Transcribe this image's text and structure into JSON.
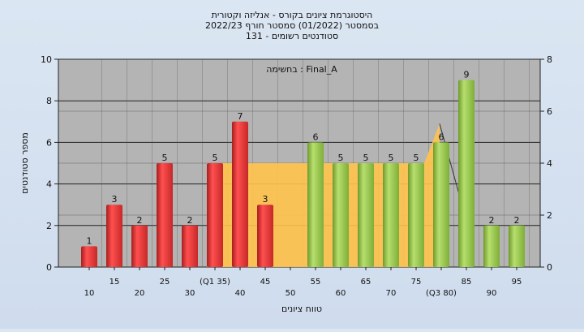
{
  "chart_data": {
    "type": "bar",
    "title_lines": [
      "היסטוגרמת ציונים בקורס - אנליזה וקטורית",
      "בסמסטר  (01/2022)  סמסטר חורף 2022/23",
      "סטודנטים רשומים - 131"
    ],
    "xlabel": "טווח ציונים",
    "ylabel": "מספר סטודנטים",
    "annotation": "בחשימה : Final_A",
    "ylim": [
      0,
      10
    ],
    "y2lim": [
      0,
      8
    ],
    "yticks": [
      "0",
      "2",
      "4",
      "6",
      "8",
      "10"
    ],
    "y2ticks": [
      "0",
      "2",
      "4",
      "6",
      "8"
    ],
    "categories": [
      "10",
      "15",
      "20",
      "25",
      "30",
      "(Q1 35)",
      "40",
      "45",
      "50",
      "55",
      "60",
      "65",
      "70",
      "75",
      "(Q3 80)",
      "85",
      "90",
      "95"
    ],
    "values": [
      1,
      3,
      2,
      5,
      2,
      5,
      7,
      3,
      0,
      6,
      5,
      5,
      5,
      5,
      6,
      9,
      2,
      2
    ],
    "bar_groups": [
      "red",
      "red",
      "red",
      "red",
      "red",
      "red",
      "red",
      "red",
      "none",
      "green",
      "green",
      "green",
      "green",
      "green",
      "green",
      "green",
      "green",
      "green"
    ],
    "box_overlay": {
      "description_level": 5,
      "start_category": "(Q1 35)",
      "end_category": "75",
      "peak_category": "(Q3 80)",
      "peak_level": 6.9
    },
    "grid": true,
    "colors": {
      "red": "#e23a3a",
      "green": "#8fbf3e",
      "plot_bg": "#b4b4b4",
      "overlay": "#ffc34d"
    }
  }
}
